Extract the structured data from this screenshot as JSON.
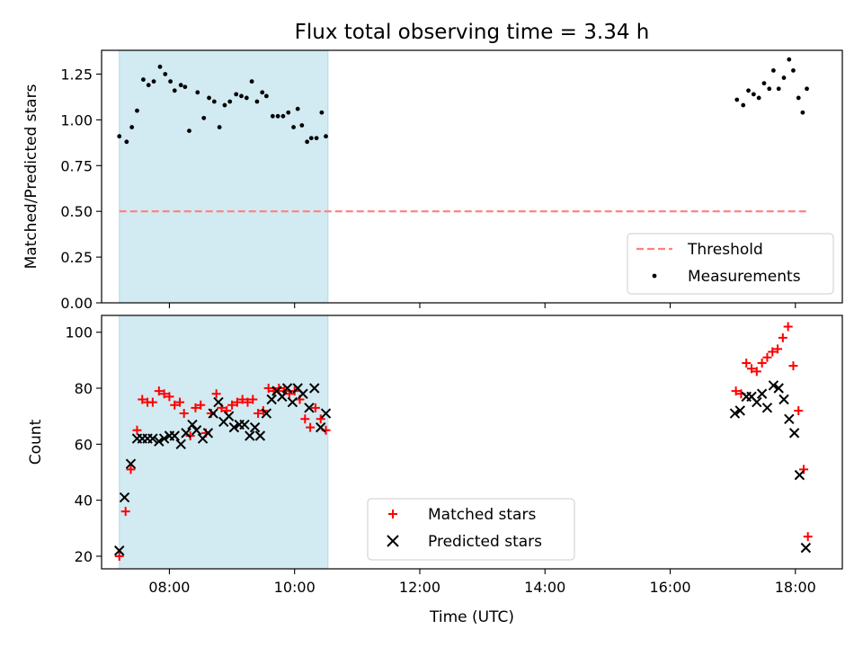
{
  "chart_data": [
    {
      "type": "scatter",
      "title": "Flux total observing time = 3.34 h",
      "xlabel": "",
      "ylabel": "Matched/Predicted stars",
      "xlim": [
        "06:55",
        "18:45"
      ],
      "ylim": [
        0,
        1.38
      ],
      "x_ticks": [
        "08:00",
        "10:00",
        "12:00",
        "14:00",
        "16:00",
        "18:00"
      ],
      "y_ticks": [
        "0.00",
        "0.25",
        "0.50",
        "0.75",
        "1.00",
        "1.25"
      ],
      "shaded_span": {
        "start": "07:12",
        "end": "10:32",
        "color": "#add8e6"
      },
      "legend": {
        "position": "lower-right",
        "entries": [
          "Threshold",
          "Measurements"
        ]
      },
      "series": [
        {
          "name": "Threshold",
          "kind": "dashed-line",
          "color": "#ff7f7f",
          "x": [
            "07:12",
            "18:12"
          ],
          "y": [
            0.5,
            0.5
          ]
        },
        {
          "name": "Measurements",
          "kind": "dots",
          "color": "#000000",
          "points": [
            [
              "07:12",
              0.91
            ],
            [
              "07:19",
              0.88
            ],
            [
              "07:24",
              0.96
            ],
            [
              "07:29",
              1.05
            ],
            [
              "07:35",
              1.22
            ],
            [
              "07:40",
              1.19
            ],
            [
              "07:45",
              1.21
            ],
            [
              "07:51",
              1.29
            ],
            [
              "07:56",
              1.25
            ],
            [
              "08:01",
              1.21
            ],
            [
              "08:05",
              1.16
            ],
            [
              "08:11",
              1.19
            ],
            [
              "08:15",
              1.18
            ],
            [
              "08:19",
              0.94
            ],
            [
              "08:27",
              1.15
            ],
            [
              "08:33",
              1.01
            ],
            [
              "08:38",
              1.12
            ],
            [
              "08:43",
              1.1
            ],
            [
              "08:48",
              0.96
            ],
            [
              "08:53",
              1.08
            ],
            [
              "08:58",
              1.1
            ],
            [
              "09:04",
              1.14
            ],
            [
              "09:09",
              1.13
            ],
            [
              "09:14",
              1.12
            ],
            [
              "09:19",
              1.21
            ],
            [
              "09:24",
              1.1
            ],
            [
              "09:29",
              1.15
            ],
            [
              "09:33",
              1.13
            ],
            [
              "09:39",
              1.02
            ],
            [
              "09:44",
              1.02
            ],
            [
              "09:49",
              1.02
            ],
            [
              "09:54",
              1.04
            ],
            [
              "09:59",
              0.96
            ],
            [
              "10:03",
              1.06
            ],
            [
              "10:07",
              0.97
            ],
            [
              "10:12",
              0.88
            ],
            [
              "10:16",
              0.9
            ],
            [
              "10:21",
              0.9
            ],
            [
              "10:26",
              1.04
            ],
            [
              "10:30",
              0.91
            ],
            [
              "17:04",
              1.11
            ],
            [
              "17:10",
              1.08
            ],
            [
              "17:15",
              1.16
            ],
            [
              "17:20",
              1.14
            ],
            [
              "17:25",
              1.12
            ],
            [
              "17:30",
              1.2
            ],
            [
              "17:35",
              1.17
            ],
            [
              "17:39",
              1.27
            ],
            [
              "17:44",
              1.17
            ],
            [
              "17:49",
              1.23
            ],
            [
              "17:54",
              1.33
            ],
            [
              "17:58",
              1.27
            ],
            [
              "18:03",
              1.12
            ],
            [
              "18:07",
              1.04
            ],
            [
              "18:11",
              1.17
            ]
          ]
        }
      ]
    },
    {
      "type": "scatter",
      "title": "",
      "xlabel": "Time (UTC)",
      "ylabel": "Count",
      "xlim": [
        "06:55",
        "18:45"
      ],
      "ylim": [
        15.5,
        106
      ],
      "x_ticks": [
        "08:00",
        "10:00",
        "12:00",
        "14:00",
        "16:00",
        "18:00"
      ],
      "y_ticks": [
        "20",
        "40",
        "60",
        "80",
        "100"
      ],
      "shaded_span": {
        "start": "07:12",
        "end": "10:32",
        "color": "#add8e6"
      },
      "legend": {
        "position": "lower-center",
        "entries": [
          "Matched stars",
          "Predicted stars"
        ]
      },
      "series": [
        {
          "name": "Matched stars",
          "marker": "plus",
          "color": "#ff0000",
          "points": [
            [
              "07:12",
              20
            ],
            [
              "07:18",
              36
            ],
            [
              "07:23",
              51
            ],
            [
              "07:29",
              65
            ],
            [
              "07:34",
              76
            ],
            [
              "07:39",
              75
            ],
            [
              "07:44",
              75
            ],
            [
              "07:50",
              79
            ],
            [
              "07:55",
              78
            ],
            [
              "08:00",
              77
            ],
            [
              "08:05",
              74
            ],
            [
              "08:10",
              75
            ],
            [
              "08:14",
              71
            ],
            [
              "08:20",
              63
            ],
            [
              "08:25",
              73
            ],
            [
              "08:30",
              74
            ],
            [
              "08:35",
              64
            ],
            [
              "08:40",
              71
            ],
            [
              "08:45",
              78
            ],
            [
              "08:50",
              73
            ],
            [
              "08:55",
              72
            ],
            [
              "09:00",
              74
            ],
            [
              "09:05",
              75
            ],
            [
              "09:10",
              76
            ],
            [
              "09:15",
              75
            ],
            [
              "09:20",
              76
            ],
            [
              "09:25",
              71
            ],
            [
              "09:30",
              72
            ],
            [
              "09:35",
              80
            ],
            [
              "09:40",
              79
            ],
            [
              "09:45",
              80
            ],
            [
              "09:50",
              79
            ],
            [
              "09:55",
              78
            ],
            [
              "10:00",
              79
            ],
            [
              "10:05",
              76
            ],
            [
              "10:10",
              69
            ],
            [
              "10:15",
              66
            ],
            [
              "10:20",
              73
            ],
            [
              "10:25",
              69
            ],
            [
              "10:30",
              65
            ],
            [
              "17:03",
              79
            ],
            [
              "17:08",
              78
            ],
            [
              "17:13",
              89
            ],
            [
              "17:18",
              87
            ],
            [
              "17:23",
              86
            ],
            [
              "17:28",
              89
            ],
            [
              "17:33",
              91
            ],
            [
              "17:38",
              93
            ],
            [
              "17:43",
              94
            ],
            [
              "17:48",
              98
            ],
            [
              "17:53",
              102
            ],
            [
              "17:58",
              88
            ],
            [
              "18:03",
              72
            ],
            [
              "18:08",
              51
            ],
            [
              "18:12",
              27
            ]
          ]
        },
        {
          "name": "Predicted stars",
          "marker": "x",
          "color": "#000000",
          "points": [
            [
              "07:12",
              22
            ],
            [
              "07:17",
              41
            ],
            [
              "07:23",
              53
            ],
            [
              "07:29",
              62
            ],
            [
              "07:34",
              62
            ],
            [
              "07:39",
              62
            ],
            [
              "07:44",
              62
            ],
            [
              "07:50",
              61
            ],
            [
              "07:55",
              62
            ],
            [
              "08:00",
              63
            ],
            [
              "08:05",
              63
            ],
            [
              "08:11",
              60
            ],
            [
              "08:16",
              64
            ],
            [
              "08:22",
              67
            ],
            [
              "08:26",
              65
            ],
            [
              "08:32",
              62
            ],
            [
              "08:37",
              64
            ],
            [
              "08:42",
              71
            ],
            [
              "08:47",
              75
            ],
            [
              "08:52",
              68
            ],
            [
              "08:57",
              70
            ],
            [
              "09:02",
              66
            ],
            [
              "09:07",
              67
            ],
            [
              "09:12",
              67
            ],
            [
              "09:17",
              63
            ],
            [
              "09:22",
              66
            ],
            [
              "09:27",
              63
            ],
            [
              "09:33",
              71
            ],
            [
              "09:38",
              76
            ],
            [
              "09:43",
              79
            ],
            [
              "09:48",
              77
            ],
            [
              "09:53",
              80
            ],
            [
              "09:58",
              75
            ],
            [
              "10:03",
              80
            ],
            [
              "10:08",
              78
            ],
            [
              "10:14",
              73
            ],
            [
              "10:19",
              80
            ],
            [
              "10:25",
              66
            ],
            [
              "10:30",
              71
            ],
            [
              "17:02",
              71
            ],
            [
              "17:07",
              72
            ],
            [
              "17:13",
              77
            ],
            [
              "17:18",
              77
            ],
            [
              "17:23",
              75
            ],
            [
              "17:28",
              78
            ],
            [
              "17:33",
              73
            ],
            [
              "17:39",
              81
            ],
            [
              "17:44",
              80
            ],
            [
              "17:49",
              76
            ],
            [
              "17:54",
              69
            ],
            [
              "17:59",
              64
            ],
            [
              "18:04",
              49
            ],
            [
              "18:10",
              23
            ]
          ]
        }
      ]
    }
  ]
}
